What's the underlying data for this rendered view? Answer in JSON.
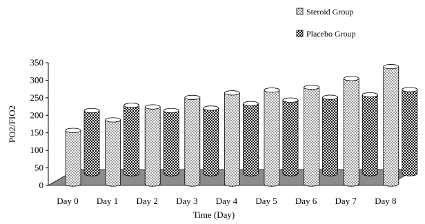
{
  "chart_data": {
    "type": "bar",
    "categories": [
      "Day 0",
      "Day 1",
      "Day 2",
      "Day 3",
      "Day 4",
      "Day 5",
      "Day 6",
      "Day 7",
      "Day 8"
    ],
    "series": [
      {
        "name": "Steroid Group",
        "values": [
          153,
          183,
          220,
          247,
          260,
          268,
          276,
          301,
          335
        ]
      },
      {
        "name": "Placebo Group",
        "values": [
          180,
          195,
          180,
          187,
          200,
          210,
          218,
          225,
          240
        ]
      }
    ],
    "title": "",
    "xlabel": "Time (Day)",
    "ylabel": "PO2/FIO2",
    "ylim": [
      0,
      350
    ],
    "yticks": [
      0,
      50,
      100,
      150,
      200,
      250,
      300,
      350
    ],
    "three_d": true,
    "bar_shape": "cylinder",
    "legend_position": "top-right",
    "colors": {
      "floor": "#8c8c8c",
      "bar_fill": "#ffffff",
      "bar_stroke": "#000000",
      "steroid_pattern": "dots",
      "placebo_pattern": "checker"
    }
  }
}
